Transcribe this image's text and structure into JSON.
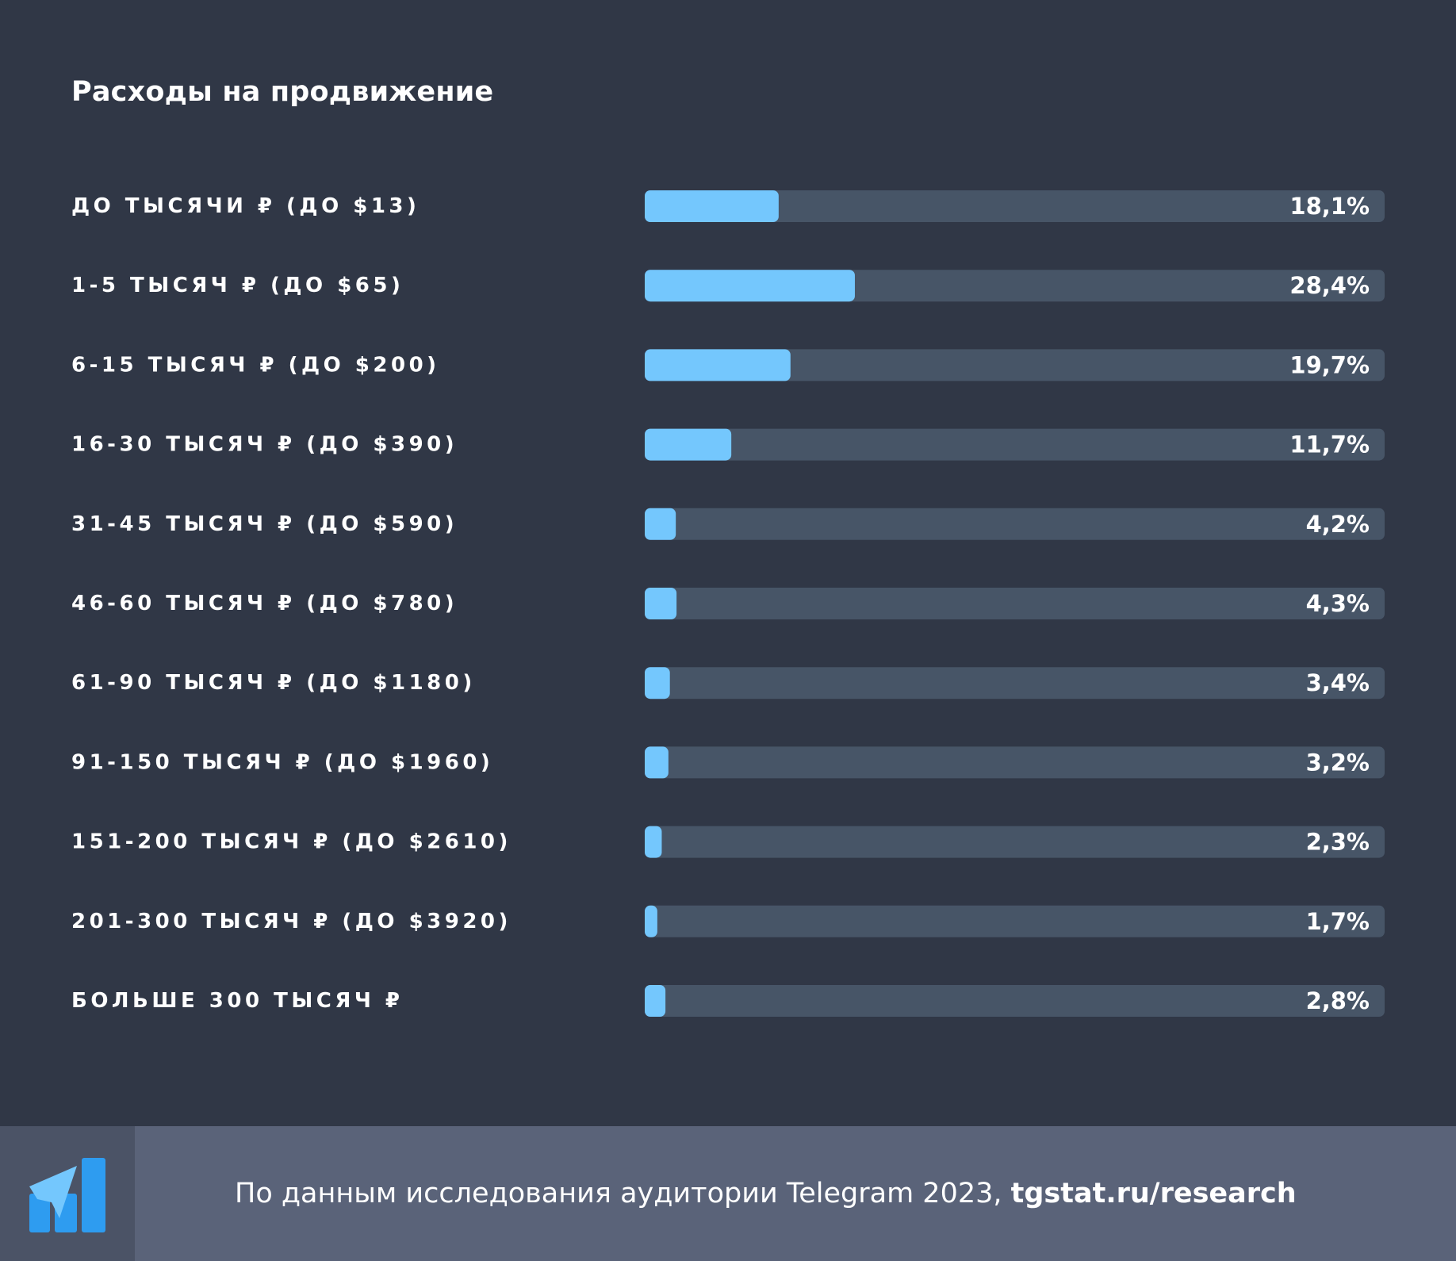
{
  "title": "Расходы на продвижение",
  "chart_data": {
    "type": "bar",
    "orientation": "horizontal",
    "title": "Расходы на продвижение",
    "categories": [
      "ДО ТЫСЯЧИ ₽ (ДО $13)",
      "1-5 ТЫСЯЧ ₽ (ДО $65)",
      "6-15 ТЫСЯЧ ₽ (ДО $200)",
      "16-30 ТЫСЯЧ ₽ (ДО $390)",
      "31-45 ТЫСЯЧ ₽ (ДО $590)",
      "46-60 ТЫСЯЧ ₽ (ДО $780)",
      "61-90 ТЫСЯЧ ₽ (ДО $1180)",
      "91-150 ТЫСЯЧ ₽ (ДО $1960)",
      "151-200 ТЫСЯЧ ₽ (ДО $2610)",
      "201-300 ТЫСЯЧ ₽ (ДО $3920)",
      "БОЛЬШЕ 300 ТЫСЯЧ ₽"
    ],
    "values": [
      18.1,
      28.4,
      19.7,
      11.7,
      4.2,
      4.3,
      3.4,
      3.2,
      2.3,
      1.7,
      2.8
    ],
    "value_labels": [
      "18,1%",
      "28,4%",
      "19,7%",
      "11,7%",
      "4,2%",
      "4,3%",
      "3,4%",
      "3,2%",
      "2,3%",
      "1,7%",
      "2,8%"
    ],
    "xlim": [
      0,
      100
    ],
    "grid": false,
    "legend": "none",
    "colors": {
      "bar": "#74c7fd",
      "track": "#475567",
      "background": "#303746",
      "text": "#ffffff"
    }
  },
  "footer": {
    "text": "По данным исследования аудитории Telegram 2023, ",
    "link": "tgstat.ru/research",
    "logo_icon": "tgstat-logo-icon"
  }
}
